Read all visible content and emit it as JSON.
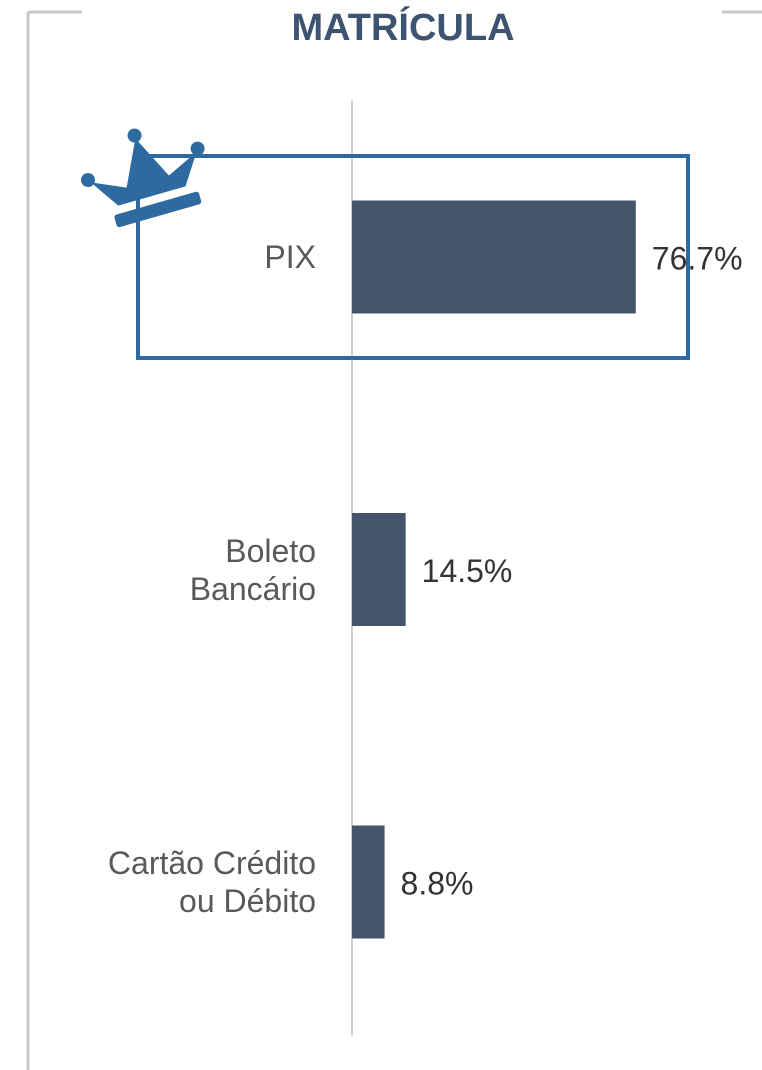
{
  "chart_data": {
    "type": "bar",
    "orientation": "horizontal",
    "title": "MATRÍCULA",
    "categories": [
      "PIX",
      "Boleto\nBancário",
      "Cartão Crédito\nou Débito"
    ],
    "values": [
      76.7,
      14.5,
      8.8
    ],
    "value_labels": [
      "76.7%",
      "14.5%",
      "8.8%"
    ],
    "color": "#44546a",
    "xlim": [
      0,
      100
    ]
  }
}
